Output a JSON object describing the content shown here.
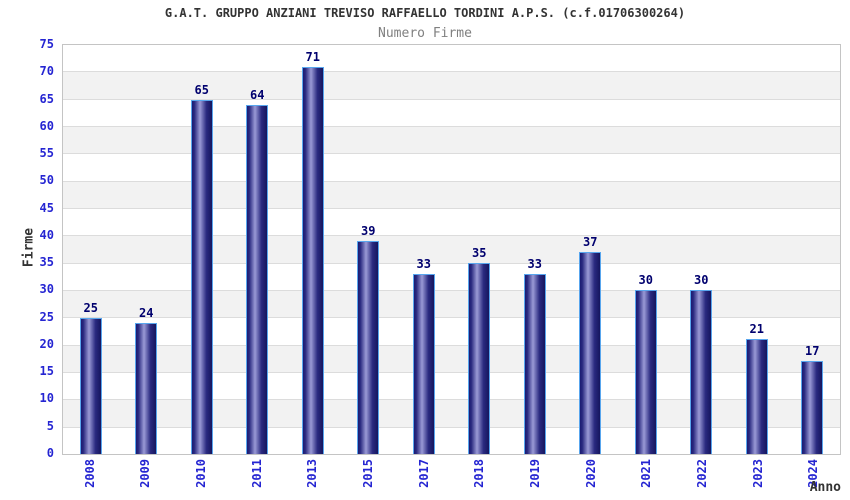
{
  "header": {
    "title": "G.A.T. GRUPPO ANZIANI TREVISO RAFFAELLO TORDINI A.P.S. (c.f.01706300264)",
    "subtitle": "Numero Firme"
  },
  "chart_data": {
    "type": "bar",
    "title": "G.A.T. GRUPPO ANZIANI TREVISO RAFFAELLO TORDINI A.P.S. (c.f.01706300264)",
    "subtitle": "Numero Firme",
    "categories": [
      "2008",
      "2009",
      "2010",
      "2011",
      "2013",
      "2015",
      "2017",
      "2018",
      "2019",
      "2020",
      "2021",
      "2022",
      "2023",
      "2024"
    ],
    "values": [
      25,
      24,
      65,
      64,
      71,
      39,
      33,
      35,
      33,
      37,
      30,
      30,
      21,
      17
    ],
    "xlabel": "Anno",
    "ylabel": "Firme",
    "ylim": [
      0,
      75
    ],
    "ytick_step": 5,
    "yticks": [
      0,
      5,
      10,
      15,
      20,
      25,
      30,
      35,
      40,
      45,
      50,
      55,
      60,
      65,
      70,
      75
    ],
    "grid": "horizontal gridlines every 5 with alternating white/gray bands",
    "legend": "none",
    "colors": {
      "bar_dark": "#1b1b72",
      "bar_highlight": "#9a9ad6",
      "bar_border": "#58a6ee",
      "axis_tick_label": "#2525d2",
      "value_label": "#00006e",
      "band_alternate": "#f2f2f2",
      "gridline": "#dcdcdc",
      "plot_border": "#c4c4c4",
      "title": "#333333",
      "subtitle": "#808080"
    }
  }
}
